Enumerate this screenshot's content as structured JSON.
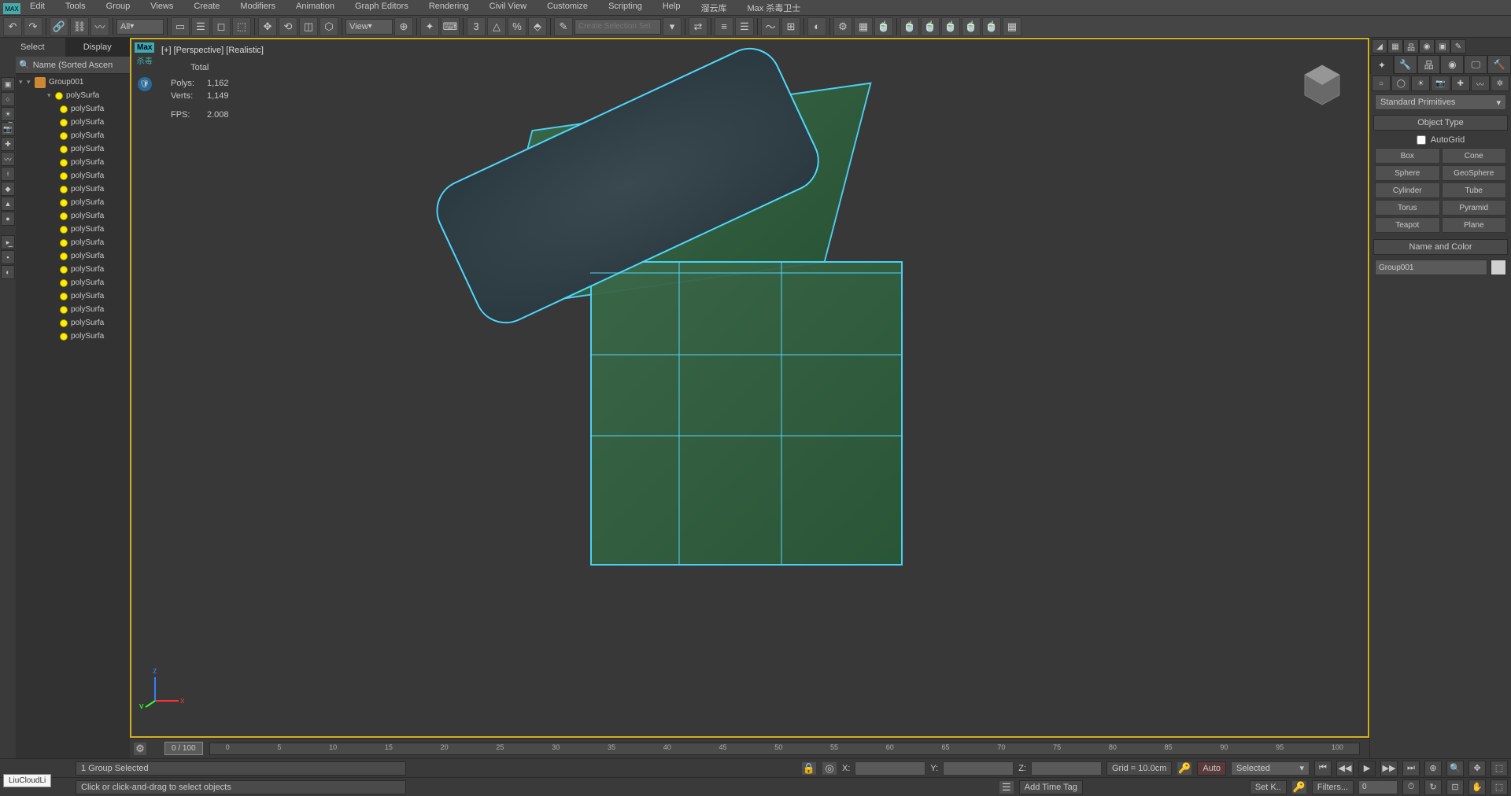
{
  "menu": {
    "items": [
      "Edit",
      "Tools",
      "Group",
      "Views",
      "Create",
      "Modifiers",
      "Animation",
      "Graph Editors",
      "Rendering",
      "Civil View",
      "Customize",
      "Scripting",
      "Help",
      "溜云库",
      "Max 杀毒卫士"
    ]
  },
  "toolbar": {
    "workspace": "All",
    "viewmode": "View",
    "selection_set": "Create Selection Set"
  },
  "left_panel": {
    "tabs": [
      "Select",
      "Display"
    ],
    "header": "Name (Sorted Ascen",
    "root": {
      "name": "Group001",
      "children_label": "polySurfa",
      "children_count": 19
    }
  },
  "viewport": {
    "max_badge": "Max",
    "max_sub": "杀毒",
    "label_1": "[+]",
    "label_2": "[Perspective]",
    "label_3": "[Realistic]",
    "stats": {
      "header": "Total",
      "polys_label": "Polys:",
      "polys": "1,162",
      "verts_label": "Verts:",
      "verts": "1,149",
      "fps_label": "FPS:",
      "fps": "2.008"
    }
  },
  "timeline": {
    "current": "0 / 100",
    "ticks": [
      "0",
      "5",
      "10",
      "15",
      "20",
      "25",
      "30",
      "35",
      "40",
      "45",
      "50",
      "55",
      "60",
      "65",
      "70",
      "75",
      "80",
      "85",
      "90",
      "95",
      "100"
    ]
  },
  "status": {
    "user": "LiuCloudLi",
    "selection": "1 Group Selected",
    "hint": "Click or click-and-drag to select objects",
    "x_label": "X:",
    "y_label": "Y:",
    "z_label": "Z:",
    "grid": "Grid = 10.0cm",
    "time_tag": "Add Time Tag",
    "auto": "Auto",
    "set_k": "Set K..",
    "selected": "Selected",
    "filters": "Filters..."
  },
  "command_panel": {
    "dropdown": "Standard Primitives",
    "rollout_obj_type": "Object Type",
    "autogrid": "AutoGrid",
    "primitives": [
      [
        "Box",
        "Cone"
      ],
      [
        "Sphere",
        "GeoSphere"
      ],
      [
        "Cylinder",
        "Tube"
      ],
      [
        "Torus",
        "Pyramid"
      ],
      [
        "Teapot",
        "Plane"
      ]
    ],
    "rollout_name": "Name and Color",
    "object_name": "Group001"
  },
  "colors": {
    "viewport_border": "#d4b020",
    "wireframe": "#4dd8ff",
    "model_green": "#3a6848",
    "stats_text": "#e8b020"
  }
}
